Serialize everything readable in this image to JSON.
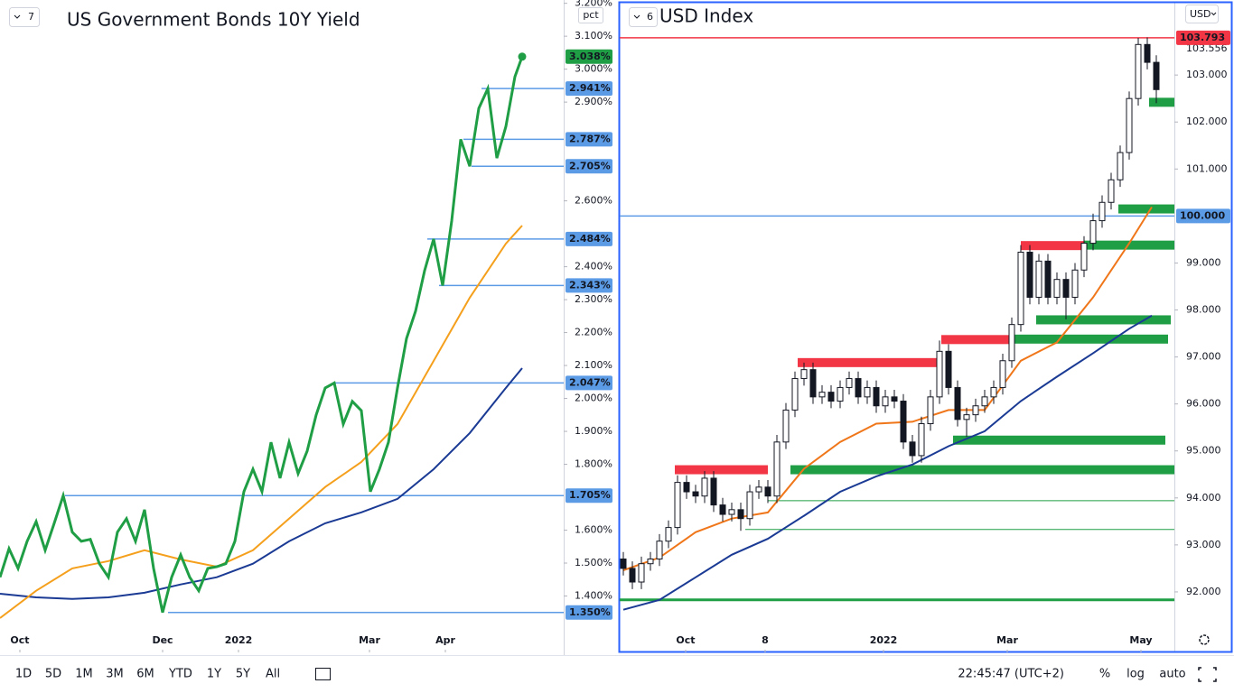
{
  "chart_data": [
    {
      "type": "line",
      "title": "US Government Bonds 10Y Yield",
      "indicator": "7",
      "y_axis_label": "pct",
      "xlim": [
        0,
        62.4
      ],
      "xticks": [
        {
          "value": 2.2,
          "label": "Oct"
        },
        {
          "value": 18,
          "label": "Dec"
        },
        {
          "value": 26.4,
          "label": "2022"
        },
        {
          "value": 40.9,
          "label": "Mar"
        },
        {
          "value": 49.3,
          "label": "Apr"
        }
      ],
      "ylim": [
        1.3,
        3.21
      ],
      "yticks": [
        {
          "value": 3.2,
          "label": "3.200%"
        },
        {
          "value": 3.1,
          "label": "3.100%"
        },
        {
          "value": 3.0,
          "label": "3.000%"
        },
        {
          "value": 2.9,
          "label": "2.900%"
        },
        {
          "value": 2.6,
          "label": "2.600%"
        },
        {
          "value": 2.4,
          "label": "2.400%"
        },
        {
          "value": 2.3,
          "label": "2.300%"
        },
        {
          "value": 2.2,
          "label": "2.200%"
        },
        {
          "value": 2.1,
          "label": "2.100%"
        },
        {
          "value": 2.0,
          "label": "2.000%"
        },
        {
          "value": 1.9,
          "label": "1.900%"
        },
        {
          "value": 1.8,
          "label": "1.800%"
        },
        {
          "value": 1.6,
          "label": "1.600%"
        },
        {
          "value": 1.5,
          "label": "1.500%"
        },
        {
          "value": 1.4,
          "label": "1.400%"
        }
      ],
      "series": [
        {
          "color": "#1f9e45",
          "x": [
            0,
            1,
            2,
            3,
            4,
            5,
            6,
            7,
            8,
            9,
            10,
            11,
            12,
            13,
            14,
            15,
            16,
            17,
            18,
            19,
            20,
            21,
            22,
            23,
            24,
            25,
            26,
            27,
            28,
            29,
            30,
            31,
            32,
            33,
            34,
            35,
            36,
            37,
            38,
            39,
            40,
            41,
            42,
            43,
            44,
            45,
            46,
            47,
            48,
            49,
            50,
            51,
            52,
            53,
            54,
            55,
            56,
            57,
            57.8
          ],
          "values": [
            1.457,
            1.544,
            1.484,
            1.566,
            1.626,
            1.539,
            1.621,
            1.705,
            1.594,
            1.566,
            1.572,
            1.498,
            1.457,
            1.594,
            1.635,
            1.566,
            1.662,
            1.484,
            1.35,
            1.457,
            1.525,
            1.457,
            1.416,
            1.484,
            1.489,
            1.498,
            1.566,
            1.717,
            1.785,
            1.717,
            1.867,
            1.758,
            1.867,
            1.772,
            1.84,
            1.95,
            2.032,
            2.047,
            1.922,
            1.991,
            1.963,
            1.717,
            1.785,
            1.867,
            2.032,
            2.182,
            2.265,
            2.388,
            2.484,
            2.343,
            2.539,
            2.787,
            2.705,
            2.881,
            2.941,
            2.73,
            2.826,
            2.977,
            3.038
          ]
        },
        {
          "color": "#f5a01d",
          "x": [
            0,
            4,
            8,
            12,
            16,
            20,
            24,
            28,
            32,
            36,
            40,
            44,
            48,
            52,
            56,
            57.8
          ],
          "values": [
            1.333,
            1.416,
            1.484,
            1.506,
            1.539,
            1.511,
            1.489,
            1.539,
            1.635,
            1.731,
            1.807,
            1.922,
            2.114,
            2.306,
            2.47,
            2.525
          ]
        },
        {
          "color": "#1a3a94",
          "x": [
            0,
            4,
            8,
            12,
            16,
            20,
            24,
            28,
            32,
            36,
            40,
            44,
            48,
            52,
            56,
            57.8
          ],
          "values": [
            1.407,
            1.396,
            1.391,
            1.396,
            1.41,
            1.435,
            1.457,
            1.498,
            1.566,
            1.621,
            1.654,
            1.695,
            1.785,
            1.895,
            2.032,
            2.092
          ]
        }
      ],
      "last_value": {
        "value": 3.038,
        "label": "3.038%",
        "color": "#1f9e45"
      },
      "level_color": "#5b9be6",
      "levels": [
        {
          "value": 2.941,
          "label": "2.941%",
          "from": 53.3
        },
        {
          "value": 2.787,
          "label": "2.787%",
          "from": 51.3
        },
        {
          "value": 2.705,
          "label": "2.705%",
          "from": 52.2
        },
        {
          "value": 2.484,
          "label": "2.484%",
          "from": 47.3
        },
        {
          "value": 2.343,
          "label": "2.343%",
          "from": 48.6
        },
        {
          "value": 2.047,
          "label": "2.047%",
          "from": 37
        },
        {
          "value": 1.705,
          "label": "1.705%",
          "from": 7.2
        },
        {
          "value": 1.35,
          "label": "1.350%",
          "from": 18.6
        }
      ]
    },
    {
      "type": "candlestick",
      "title": "USD Index",
      "indicator": "6",
      "currency": "USD",
      "xlim": [
        -0.4,
        61
      ],
      "xticks": [
        {
          "value": 6.9,
          "label": "Oct"
        },
        {
          "value": 15.7,
          "label": "8"
        },
        {
          "value": 28.8,
          "label": "2022"
        },
        {
          "value": 42.5,
          "label": "Mar"
        },
        {
          "value": 57.3,
          "label": "May"
        }
      ],
      "ylim": [
        90.77,
        104.52
      ],
      "yticks": [
        {
          "value": 92,
          "label": "92.000"
        },
        {
          "value": 93,
          "label": "93.000"
        },
        {
          "value": 94,
          "label": "94.000"
        },
        {
          "value": 95,
          "label": "95.000"
        },
        {
          "value": 96,
          "label": "96.000"
        },
        {
          "value": 97,
          "label": "97.000"
        },
        {
          "value": 98,
          "label": "98.000"
        },
        {
          "value": 99,
          "label": "99.000"
        },
        {
          "value": 101,
          "label": "101.000"
        },
        {
          "value": 102,
          "label": "102.000"
        },
        {
          "value": 103,
          "label": "103.000"
        }
      ],
      "x": [
        0,
        1,
        2,
        3,
        4,
        5,
        6,
        7,
        8,
        9,
        10,
        11,
        12,
        13,
        14,
        15,
        16,
        17,
        18,
        19,
        20,
        21,
        22,
        23,
        24,
        25,
        26,
        27,
        28,
        29,
        30,
        31,
        32,
        33,
        34,
        35,
        36,
        37,
        38,
        39,
        40,
        41,
        42,
        43,
        44,
        45,
        46,
        47,
        48,
        49,
        50,
        51,
        52,
        53,
        54,
        55,
        56,
        57,
        58,
        59
      ],
      "open": [
        92.7,
        92.5,
        92.21,
        92.6,
        92.7,
        93.08,
        93.37,
        94.33,
        94.13,
        94.04,
        94.42,
        93.85,
        93.65,
        93.75,
        93.56,
        94.13,
        94.23,
        94.04,
        95.19,
        95.87,
        96.54,
        96.73,
        96.15,
        96.25,
        96.06,
        96.35,
        96.54,
        96.15,
        96.35,
        95.96,
        96.15,
        96.06,
        95.19,
        94.9,
        95.58,
        96.15,
        97.12,
        96.35,
        95.67,
        95.77,
        95.96,
        96.15,
        96.35,
        96.92,
        97.69,
        99.23,
        98.27,
        99.04,
        98.27,
        98.65,
        98.27,
        98.85,
        99.42,
        99.9,
        100.29,
        100.77,
        101.35,
        102.5,
        103.65,
        103.27
      ],
      "high": [
        92.85,
        92.65,
        92.75,
        92.85,
        93.23,
        93.52,
        94.48,
        94.48,
        94.28,
        94.57,
        94.57,
        94.0,
        93.9,
        93.9,
        94.28,
        94.38,
        94.38,
        95.34,
        96.02,
        96.69,
        96.88,
        96.88,
        96.4,
        96.4,
        96.5,
        96.69,
        96.69,
        96.5,
        96.5,
        96.3,
        96.3,
        96.21,
        95.34,
        95.73,
        96.3,
        97.35,
        97.27,
        96.5,
        95.92,
        96.11,
        96.3,
        96.5,
        97.07,
        97.84,
        99.38,
        99.38,
        99.19,
        99.19,
        98.8,
        98.8,
        99.0,
        99.57,
        100.05,
        100.44,
        100.92,
        101.5,
        102.65,
        103.79,
        103.8,
        103.42
      ],
      "low": [
        92.35,
        92.06,
        92.06,
        92.45,
        92.55,
        92.93,
        93.22,
        93.98,
        93.89,
        93.89,
        93.7,
        93.5,
        93.5,
        93.3,
        93.41,
        93.98,
        93.89,
        93.89,
        95.04,
        95.72,
        96.39,
        96.0,
        96.0,
        95.91,
        95.91,
        96.2,
        96.0,
        96.0,
        95.81,
        95.81,
        95.91,
        95.04,
        94.75,
        94.75,
        95.43,
        96.0,
        96.2,
        95.52,
        95.3,
        95.62,
        95.81,
        96.0,
        96.2,
        96.77,
        97.54,
        98.12,
        98.12,
        98.12,
        98.12,
        97.8,
        98.12,
        98.7,
        99.27,
        99.75,
        100.14,
        100.62,
        101.2,
        102.35,
        103.12,
        102.4
      ],
      "close": [
        92.5,
        92.21,
        92.6,
        92.7,
        93.08,
        93.37,
        94.33,
        94.13,
        94.04,
        94.42,
        93.85,
        93.65,
        93.75,
        93.56,
        94.13,
        94.23,
        94.04,
        95.19,
        95.87,
        96.54,
        96.73,
        96.15,
        96.25,
        96.06,
        96.35,
        96.54,
        96.15,
        96.35,
        95.96,
        96.15,
        96.06,
        95.19,
        94.9,
        95.58,
        96.15,
        97.12,
        96.35,
        95.67,
        95.77,
        95.96,
        96.15,
        96.35,
        96.92,
        97.69,
        99.23,
        98.27,
        99.04,
        98.27,
        98.65,
        98.27,
        98.85,
        99.42,
        99.9,
        100.29,
        100.77,
        101.35,
        102.5,
        103.65,
        103.27,
        102.69
      ],
      "up_color": "#ffffff",
      "down_color": "#131722",
      "series": [
        {
          "color": "#f0761a",
          "x": [
            0,
            4,
            8,
            12,
            16,
            20,
            24,
            28,
            32,
            36,
            40,
            44,
            48,
            52,
            56,
            58.5
          ],
          "values": [
            92.46,
            92.73,
            93.27,
            93.56,
            93.69,
            94.62,
            95.19,
            95.58,
            95.62,
            95.87,
            95.87,
            96.92,
            97.31,
            98.27,
            99.42,
            100.19
          ]
        },
        {
          "color": "#1a3a94",
          "x": [
            0,
            4,
            8,
            12,
            16,
            20,
            24,
            28,
            32,
            36,
            40,
            44,
            48,
            52,
            56,
            58.5
          ],
          "values": [
            91.62,
            91.83,
            92.31,
            92.79,
            93.13,
            93.62,
            94.13,
            94.46,
            94.71,
            95.1,
            95.42,
            96.06,
            96.58,
            97.08,
            97.6,
            97.88
          ]
        }
      ],
      "zones": [
        {
          "value": 94.6,
          "from": 18.5,
          "to": 61,
          "color": "#1f9e45"
        },
        {
          "value": 95.23,
          "from": 36.5,
          "to": 60,
          "color": "#1f9e45"
        },
        {
          "value": 97.38,
          "from": 42.7,
          "to": 60.3,
          "color": "#1f9e45"
        },
        {
          "value": 97.79,
          "from": 45.7,
          "to": 60.6,
          "color": "#1f9e45"
        },
        {
          "value": 99.38,
          "from": 51,
          "to": 61,
          "color": "#1f9e45"
        },
        {
          "value": 100.15,
          "from": 54.8,
          "to": 61,
          "color": "#1f9e45"
        },
        {
          "value": 102.42,
          "from": 58.2,
          "to": 61,
          "color": "#1f9e45"
        },
        {
          "value": 94.6,
          "from": 5.7,
          "to": 16,
          "color": "#f23645"
        },
        {
          "value": 96.88,
          "from": 19.3,
          "to": 34.7,
          "color": "#f23645"
        },
        {
          "value": 97.37,
          "from": 35.2,
          "to": 42.7,
          "color": "#f23645"
        },
        {
          "value": 99.37,
          "from": 44,
          "to": 51,
          "color": "#f23645"
        }
      ],
      "lines": [
        {
          "value": 93.94,
          "from": 16,
          "to": 61,
          "color": "#1f9e45"
        },
        {
          "value": 93.33,
          "from": 13.5,
          "to": 61,
          "color": "#1f9e45"
        },
        {
          "value": 91.83,
          "from": -0.4,
          "to": 61,
          "color": "#1f9e45"
        }
      ],
      "hlines": [
        {
          "value": 103.793,
          "label": "103.793",
          "color": "#f23645"
        },
        {
          "value": 100.0,
          "label": "100.000",
          "color": "#5b9be6"
        }
      ],
      "price_note": {
        "value": 103.556,
        "label": "103.556"
      }
    }
  ],
  "toolbar": {
    "ranges": [
      "1D",
      "5D",
      "1M",
      "3M",
      "6M",
      "YTD",
      "1Y",
      "5Y",
      "All"
    ],
    "clock": "22:45:47 (UTC+2)",
    "percent": "%",
    "log": "log",
    "auto": "auto"
  }
}
